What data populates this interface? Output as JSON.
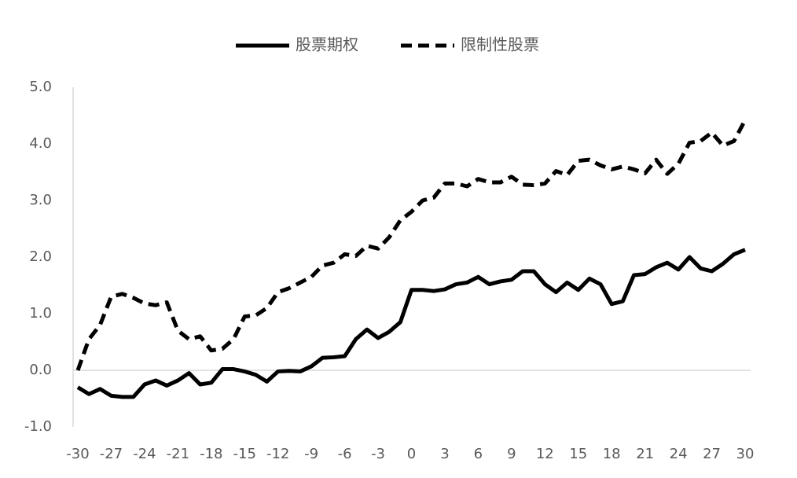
{
  "chart_data": {
    "type": "line",
    "x": [
      -30,
      -29,
      -28,
      -27,
      -26,
      -25,
      -24,
      -23,
      -22,
      -21,
      -20,
      -19,
      -18,
      -17,
      -16,
      -15,
      -14,
      -13,
      -12,
      -11,
      -10,
      -9,
      -8,
      -7,
      -6,
      -5,
      -4,
      -3,
      -2,
      -1,
      0,
      1,
      2,
      3,
      4,
      5,
      6,
      7,
      8,
      9,
      10,
      11,
      12,
      13,
      14,
      15,
      16,
      17,
      18,
      19,
      20,
      21,
      22,
      23,
      24,
      25,
      26,
      27,
      28,
      29,
      30
    ],
    "series": [
      {
        "name": "股票期权",
        "color": "#000000",
        "dash": false,
        "values": [
          -0.3,
          -0.42,
          -0.33,
          -0.45,
          -0.47,
          -0.47,
          -0.25,
          -0.18,
          -0.27,
          -0.18,
          -0.05,
          -0.25,
          -0.22,
          0.02,
          0.02,
          -0.02,
          -0.08,
          -0.2,
          -0.02,
          -0.01,
          -0.02,
          0.07,
          0.22,
          0.23,
          0.25,
          0.55,
          0.72,
          0.57,
          0.68,
          0.85,
          1.42,
          1.42,
          1.4,
          1.43,
          1.52,
          1.55,
          1.65,
          1.52,
          1.57,
          1.6,
          1.75,
          1.75,
          1.52,
          1.38,
          1.55,
          1.42,
          1.62,
          1.52,
          1.17,
          1.22,
          1.68,
          1.7,
          1.82,
          1.9,
          1.78,
          2.0,
          1.8,
          1.75,
          1.88,
          2.05,
          2.13
        ]
      },
      {
        "name": "限制性股票",
        "color": "#000000",
        "dash": true,
        "values": [
          0.0,
          0.55,
          0.8,
          1.3,
          1.35,
          1.28,
          1.18,
          1.15,
          1.2,
          0.7,
          0.55,
          0.6,
          0.35,
          0.38,
          0.55,
          0.95,
          0.97,
          1.1,
          1.38,
          1.45,
          1.55,
          1.65,
          1.85,
          1.9,
          2.05,
          2.02,
          2.2,
          2.15,
          2.35,
          2.65,
          2.8,
          3.0,
          3.05,
          3.3,
          3.3,
          3.25,
          3.38,
          3.32,
          3.32,
          3.42,
          3.28,
          3.27,
          3.3,
          3.52,
          3.45,
          3.7,
          3.72,
          3.62,
          3.55,
          3.6,
          3.55,
          3.48,
          3.72,
          3.47,
          3.65,
          4.02,
          4.05,
          4.2,
          3.97,
          4.05,
          4.42
        ]
      }
    ],
    "xlim": [
      -30,
      30
    ],
    "xticks": [
      -30,
      -27,
      -24,
      -21,
      -18,
      -15,
      -12,
      -9,
      -6,
      -3,
      0,
      3,
      6,
      9,
      12,
      15,
      18,
      21,
      24,
      27,
      30
    ],
    "ylim": [
      -1,
      5
    ],
    "yticks": [
      {
        "value": -1,
        "label": "-1.0"
      },
      {
        "value": 0,
        "label": "0.0"
      },
      {
        "value": 1,
        "label": "1.0"
      },
      {
        "value": 2,
        "label": "2.0"
      },
      {
        "value": 3,
        "label": "3.0"
      },
      {
        "value": 4,
        "label": "4.0"
      },
      {
        "value": 5,
        "label": "5.0"
      }
    ],
    "legend": "top"
  }
}
